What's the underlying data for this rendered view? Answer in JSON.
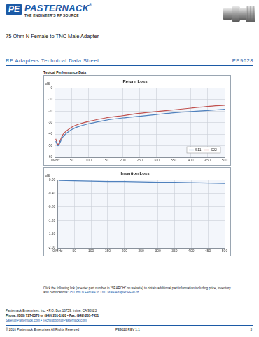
{
  "header": {
    "logo_mark": "PE",
    "brand": "PASTERNACK",
    "registered": "®",
    "tagline": "THE ENGINEER'S RF SOURCE"
  },
  "title": "75 Ohm N Female to TNC Male Adapter",
  "section": {
    "label": "RF Adapters Technical Data Sheet",
    "part_number": "PE9628"
  },
  "subheading": "Typical Performance Data",
  "chart_data": [
    {
      "type": "line",
      "title": "Return Loss",
      "y_label": "dB",
      "x": [
        3,
        10,
        25,
        50,
        75,
        100,
        150,
        200,
        250,
        300,
        350,
        400,
        450,
        500
      ],
      "series": [
        {
          "name": "S11",
          "color": "#4f81bd",
          "values": [
            -46,
            -50,
            -42,
            -36,
            -33,
            -31,
            -28,
            -26,
            -24.5,
            -23,
            -21.5,
            -20.5,
            -19.5,
            -18.5
          ]
        },
        {
          "name": "S22",
          "color": "#c0504d",
          "values": [
            -44,
            -49,
            -40,
            -34,
            -31,
            -29,
            -26,
            -24,
            -22,
            -20.5,
            -19,
            -17.5,
            -16,
            -15
          ]
        }
      ],
      "xlim": [
        0,
        500
      ],
      "xticks": [
        {
          "value": 0,
          "label": "0 MHz"
        },
        50,
        100,
        150,
        200,
        250,
        300,
        350,
        400,
        450,
        500
      ],
      "ylim": [
        -60,
        0
      ],
      "yticks": [
        -60,
        -50,
        -40,
        -30,
        -20,
        -10,
        0
      ],
      "grid": true,
      "legend": "lower right"
    },
    {
      "type": "line",
      "title": "Insertion Loss",
      "y_label": "dB",
      "x": [
        3,
        50,
        100,
        150,
        200,
        250,
        300,
        350,
        400,
        450,
        500
      ],
      "series": [
        {
          "color": "#4f81bd",
          "values": [
            -0.02,
            -0.03,
            -0.04,
            -0.05,
            -0.05,
            -0.06,
            -0.07,
            -0.07,
            -0.08,
            -0.09,
            -0.1
          ]
        }
      ],
      "xlim": [
        0,
        500
      ],
      "xticks": [
        {
          "value": 0,
          "label": "0 MHz"
        },
        50,
        100,
        150,
        200,
        250,
        300,
        350,
        400,
        450,
        500
      ],
      "ylim": [
        -2,
        0
      ],
      "yticks": [
        {
          "value": -2,
          "label": "-2.00"
        },
        {
          "value": -1.6,
          "label": "-1.60"
        },
        {
          "value": -1.2,
          "label": "-1.20"
        },
        {
          "value": -0.8,
          "label": "-0.80"
        },
        {
          "value": -0.4,
          "label": "-0.40"
        },
        {
          "value": 0,
          "label": "0.00"
        }
      ],
      "grid": true
    }
  ],
  "link_note": {
    "text": "Click the following link (or enter part number in “SEARCH” on website) to obtain additional part information including price, inventory and certifications:",
    "link": "75 Ohm N Female to TNC Male Adapter PE9628"
  },
  "footer": {
    "address": "Pasternack Enterprises, Inc. • P.O. Box 16759, Irvine, CA 92623",
    "phone": "Phone: (866) 727-8376 or (949) 261-1920 • Fax: (949) 261-7451",
    "email": "Sales@Pasternack.com • Techsupport@Pasternack.com",
    "copyright": "© 2016 Pasternack Enterprises All Rights Reserved",
    "revision": "PE9628 REV 1.1",
    "page": "3"
  }
}
